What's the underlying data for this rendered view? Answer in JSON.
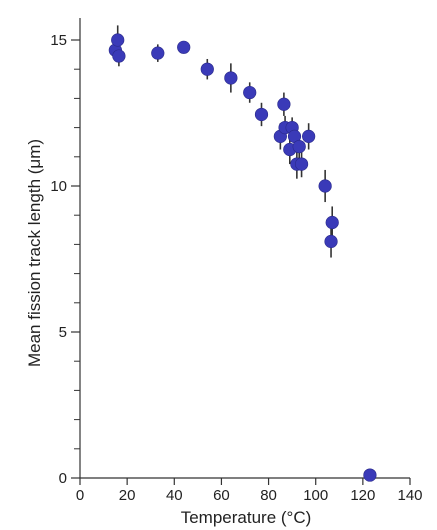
{
  "chart_data": {
    "type": "scatter",
    "title": "",
    "xlabel": "Temperature (°C)",
    "ylabel": "Mean fission track length (μm)",
    "xlim": [
      0,
      140
    ],
    "ylim": [
      0,
      15
    ],
    "x_ticks": [
      0,
      20,
      40,
      60,
      80,
      100,
      120,
      140
    ],
    "x_tick_labels": [
      "0",
      "20",
      "40",
      "60",
      "80",
      "100",
      "120",
      "140"
    ],
    "y_major_ticks": [
      0,
      5,
      10,
      15
    ],
    "y_tick_labels": [
      "0",
      "5",
      "10",
      "15"
    ],
    "y_minor_step": 1,
    "grid": false,
    "legend": "none",
    "marker_color": "#3a3ab8",
    "errorbar_color": "#333333",
    "series": [
      {
        "points": [
          {
            "x": 15,
            "y": 14.65,
            "err": 0.3
          },
          {
            "x": 16,
            "y": 15.0,
            "err": 0.5
          },
          {
            "x": 16.5,
            "y": 14.45,
            "err": 0.35
          },
          {
            "x": 33,
            "y": 14.55,
            "err": 0.3
          },
          {
            "x": 44,
            "y": 14.75,
            "err": 0.2
          },
          {
            "x": 54,
            "y": 14.0,
            "err": 0.35
          },
          {
            "x": 64,
            "y": 13.7,
            "err": 0.5
          },
          {
            "x": 72,
            "y": 13.2,
            "err": 0.35
          },
          {
            "x": 77,
            "y": 12.45,
            "err": 0.4
          },
          {
            "x": 85,
            "y": 11.7,
            "err": 0.45
          },
          {
            "x": 86.5,
            "y": 12.8,
            "err": 0.4
          },
          {
            "x": 87,
            "y": 12.0,
            "err": 0.4
          },
          {
            "x": 89,
            "y": 11.25,
            "err": 0.5
          },
          {
            "x": 90,
            "y": 12.0,
            "err": 0.35
          },
          {
            "x": 91,
            "y": 11.7,
            "err": 0.4
          },
          {
            "x": 92,
            "y": 10.75,
            "err": 0.5
          },
          {
            "x": 93,
            "y": 11.35,
            "err": 0.45
          },
          {
            "x": 94,
            "y": 10.75,
            "err": 0.45
          },
          {
            "x": 97,
            "y": 11.7,
            "err": 0.45
          },
          {
            "x": 104,
            "y": 10.0,
            "err": 0.55
          },
          {
            "x": 107,
            "y": 8.75,
            "err": 0.55
          },
          {
            "x": 106.5,
            "y": 8.1,
            "err": 0.55
          },
          {
            "x": 123,
            "y": 0.1,
            "err": 0.0
          }
        ]
      }
    ]
  }
}
